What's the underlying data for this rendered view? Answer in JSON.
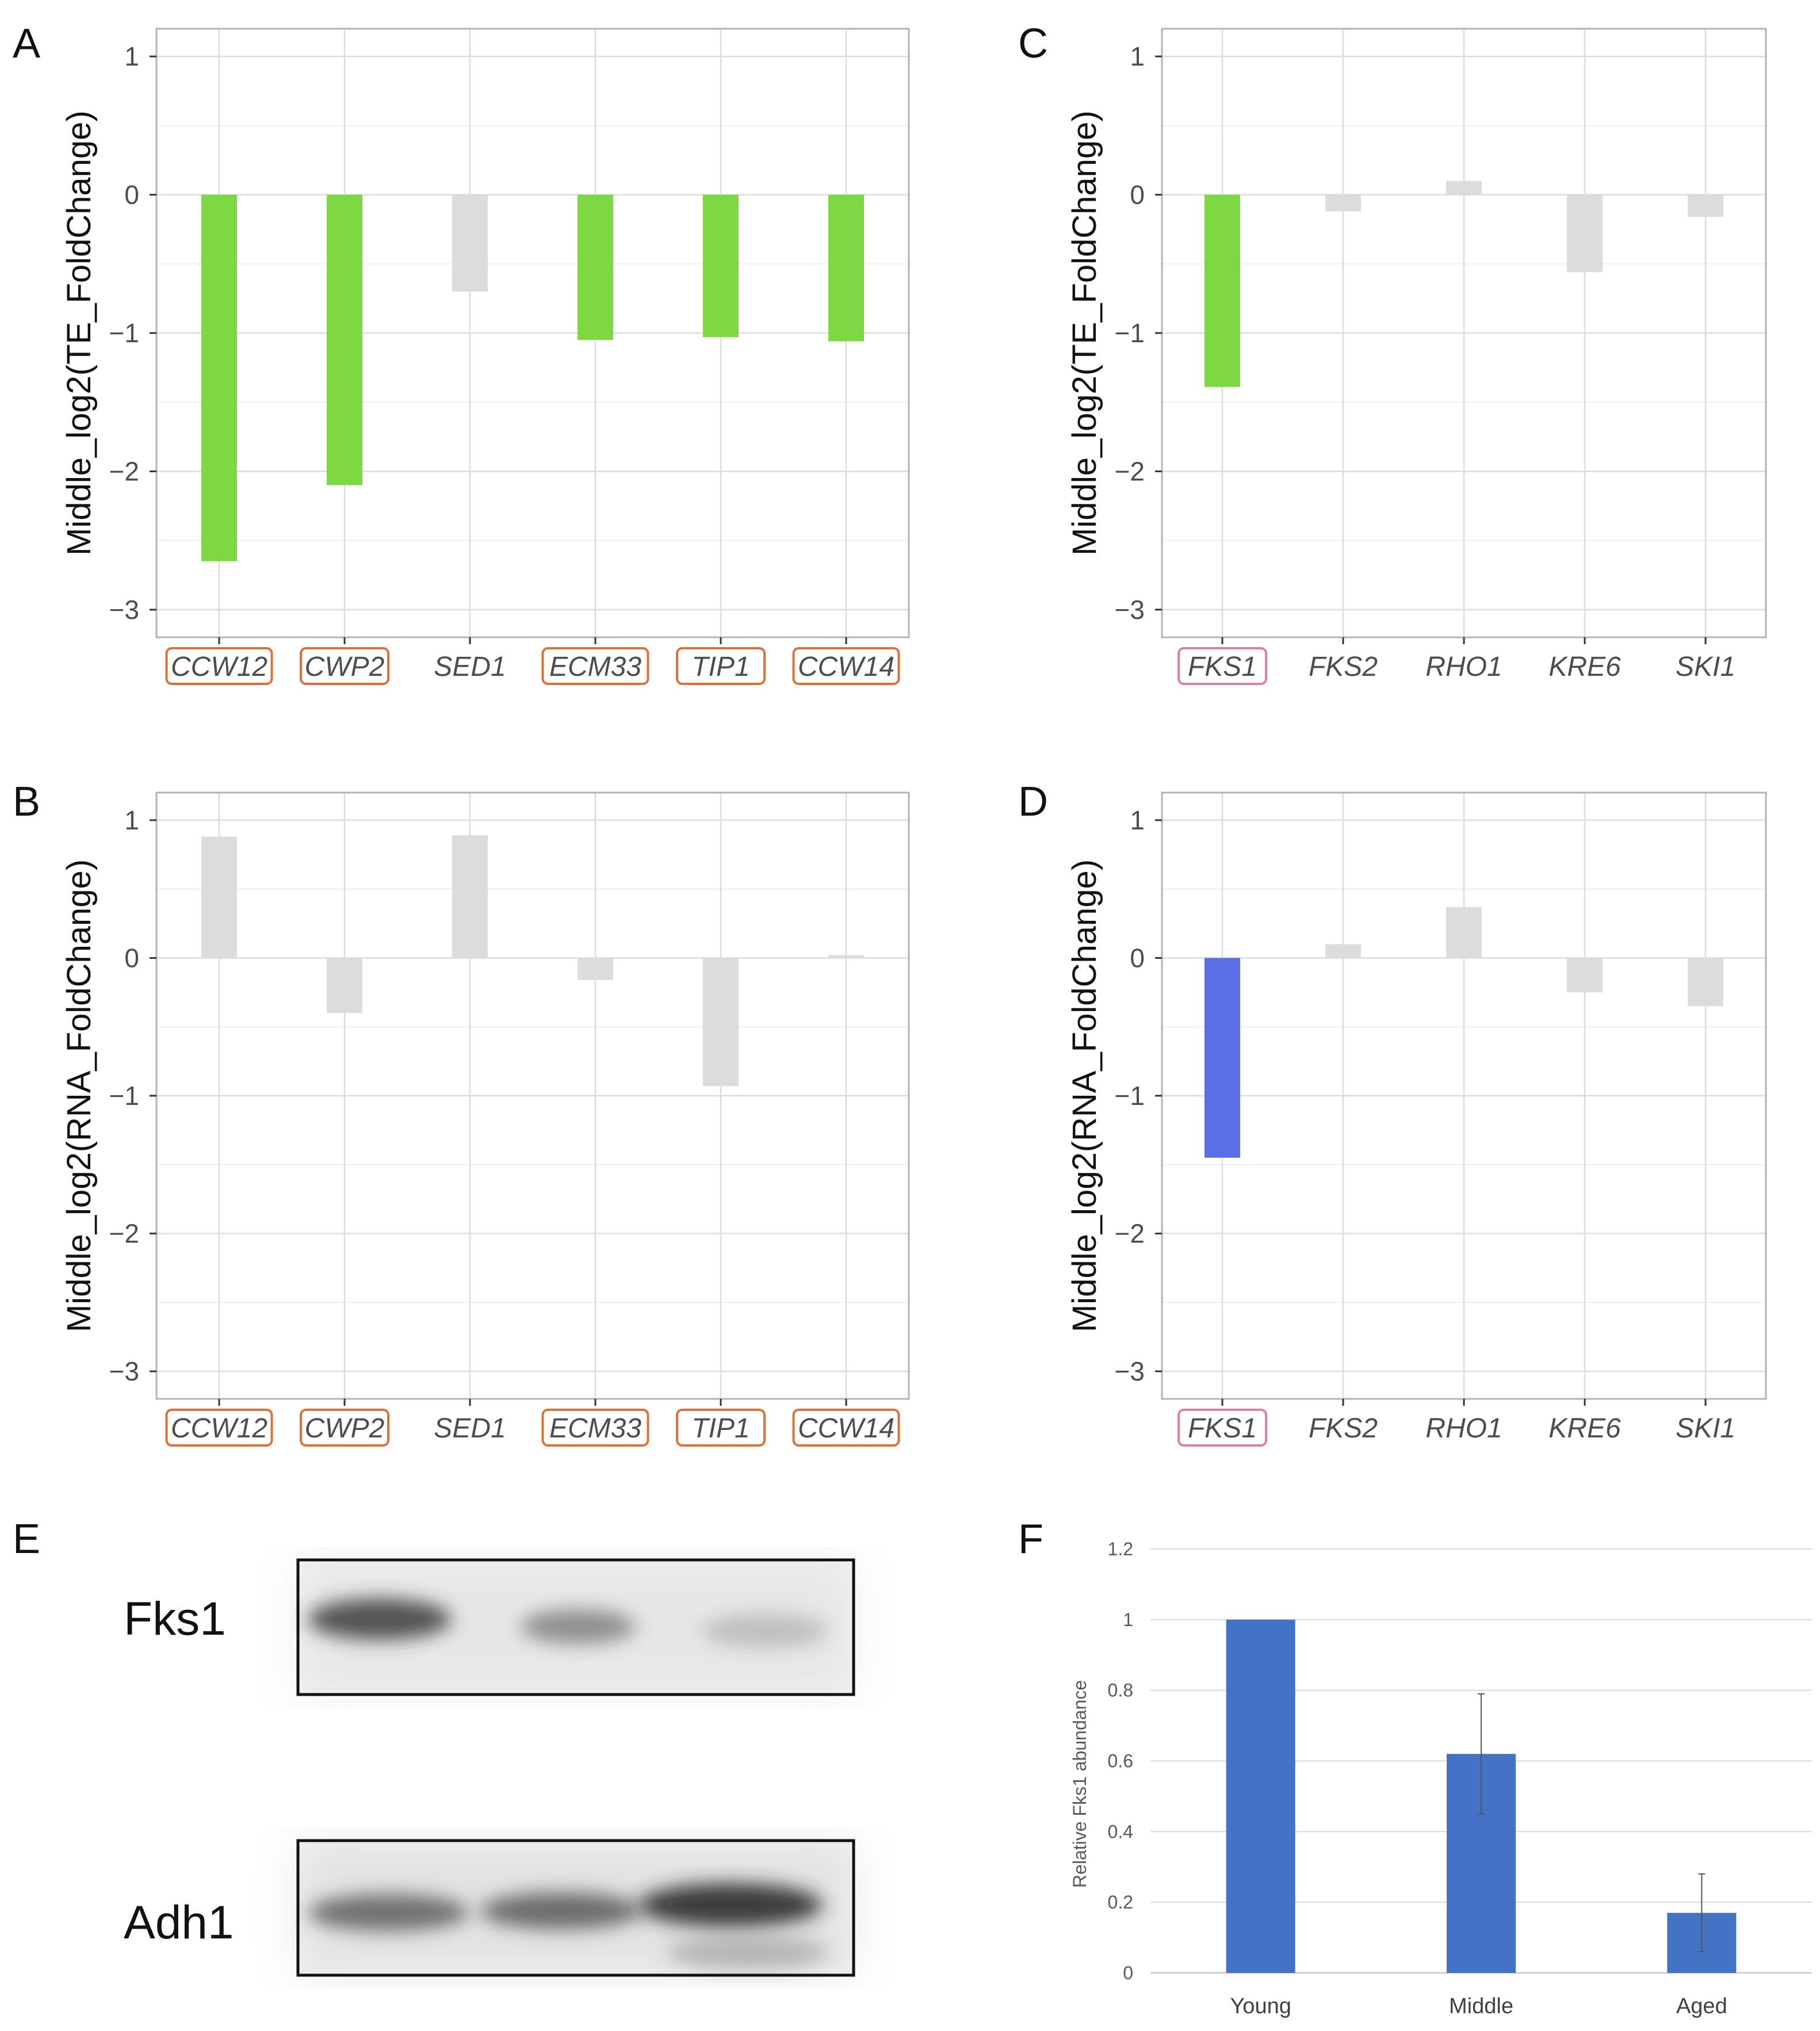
{
  "chart_data": [
    {
      "panel": "A",
      "type": "bar",
      "ylabel": "Middle_log2(TE_FoldChange)",
      "ylim": [
        -3.2,
        1.2
      ],
      "yticks": [
        "1",
        "0",
        "−1",
        "−2",
        "−3"
      ],
      "categories": [
        "CCW12",
        "CWP2",
        "SED1",
        "ECM33",
        "TIP1",
        "CCW14"
      ],
      "values": [
        -2.65,
        -2.1,
        -0.7,
        -1.05,
        -1.03,
        -1.06
      ],
      "bar_colors": [
        "#7ed844",
        "#7ed844",
        "#dcdcdc",
        "#7ed844",
        "#7ed844",
        "#7ed844"
      ],
      "boxed_labels": [
        true,
        true,
        false,
        true,
        true,
        true
      ],
      "box_color": "#e0703a"
    },
    {
      "panel": "B",
      "type": "bar",
      "ylabel": "Middle_log2(RNA_FoldChange)",
      "ylim": [
        -3.2,
        1.2
      ],
      "yticks": [
        "1",
        "0",
        "−1",
        "−2",
        "−3"
      ],
      "categories": [
        "CCW12",
        "CWP2",
        "SED1",
        "ECM33",
        "TIP1",
        "CCW14"
      ],
      "values": [
        0.88,
        -0.4,
        0.89,
        -0.16,
        -0.93,
        0.02
      ],
      "bar_colors": [
        "#dcdcdc",
        "#dcdcdc",
        "#dcdcdc",
        "#dcdcdc",
        "#dcdcdc",
        "#dcdcdc"
      ],
      "boxed_labels": [
        true,
        true,
        false,
        true,
        true,
        true
      ],
      "box_color": "#e0703a"
    },
    {
      "panel": "C",
      "type": "bar",
      "ylabel": "Middle_log2(TE_FoldChange)",
      "ylim": [
        -3.2,
        1.2
      ],
      "yticks": [
        "1",
        "0",
        "−1",
        "−2",
        "−3"
      ],
      "categories": [
        "FKS1",
        "FKS2",
        "RHO1",
        "KRE6",
        "SKI1"
      ],
      "values": [
        -1.39,
        -0.12,
        0.1,
        -0.56,
        -0.16
      ],
      "bar_colors": [
        "#7ed844",
        "#dcdcdc",
        "#dcdcdc",
        "#dcdcdc",
        "#dcdcdc"
      ],
      "boxed_labels": [
        true,
        false,
        false,
        false,
        false
      ],
      "box_color": "#e87aa3"
    },
    {
      "panel": "D",
      "type": "bar",
      "ylabel": "Middle_log2(RNA_FoldChange)",
      "ylim": [
        -3.2,
        1.2
      ],
      "yticks": [
        "1",
        "0",
        "−1",
        "−2",
        "−3"
      ],
      "categories": [
        "FKS1",
        "FKS2",
        "RHO1",
        "KRE6",
        "SKI1"
      ],
      "values": [
        -1.45,
        0.1,
        0.37,
        -0.25,
        -0.35
      ],
      "bar_colors": [
        "#5a6fe6",
        "#dcdcdc",
        "#dcdcdc",
        "#dcdcdc",
        "#dcdcdc"
      ],
      "boxed_labels": [
        true,
        false,
        false,
        false,
        false
      ],
      "box_color": "#e87aa3"
    },
    {
      "panel": "F",
      "type": "bar",
      "ylabel": "Relative Fks1 abundance",
      "ylim": [
        0,
        1.2
      ],
      "yticks": [
        "1.2",
        "1",
        "0.8",
        "0.6",
        "0.4",
        "0.2",
        "0"
      ],
      "categories": [
        "Young",
        "Middle",
        "Aged"
      ],
      "values": [
        1.0,
        0.62,
        0.17
      ],
      "errors": [
        0,
        0.17,
        0.11
      ],
      "bar_color": "#4472c4"
    }
  ],
  "blot": {
    "panel": "E",
    "bands": [
      "Fks1",
      "Adh1"
    ]
  }
}
